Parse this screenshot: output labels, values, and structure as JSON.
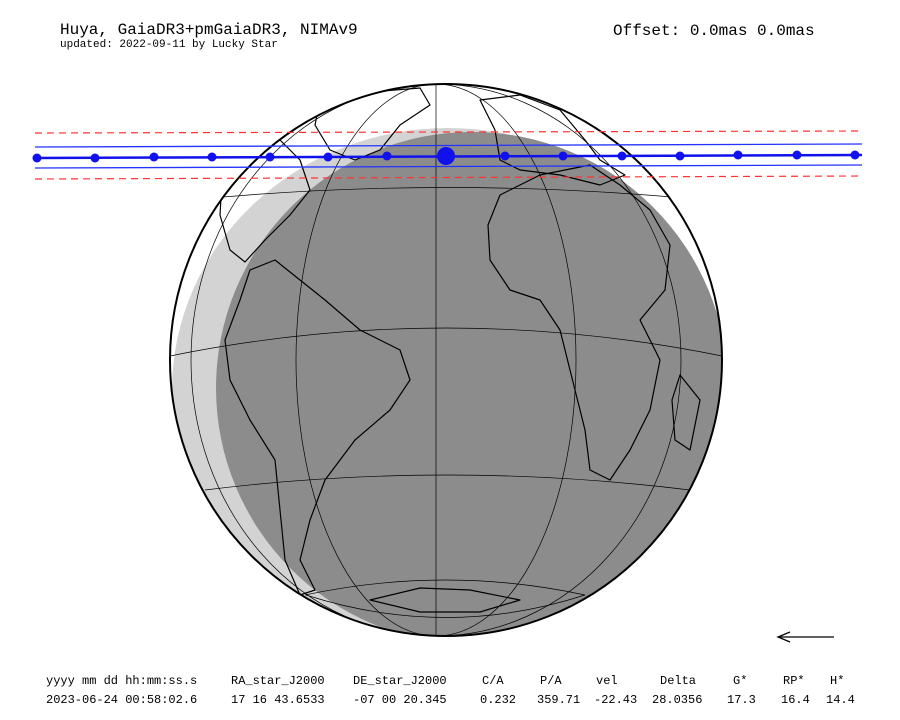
{
  "header": {
    "title": "Huya, GaiaDR3+pmGaiaDR3, NIMAv9",
    "subtitle": "updated: 2022-09-11 by Lucky Star",
    "offset": "Offset: 0.0mas 0.0mas"
  },
  "table": {
    "header": [
      "yyyy mm dd hh:mm:ss.s",
      "RA_star_J2000",
      "DE_star_J2000",
      "C/A",
      "P/A",
      "vel",
      "Delta",
      "G*",
      "RP*",
      "H*"
    ],
    "rows": [
      [
        "2023-06-24 00:58:02.6",
        "17 16 43.6533",
        "-07 00 20.345",
        "0.232",
        "359.71",
        "-22.43",
        "28.0356",
        "17.3",
        "16.4",
        "14.4"
      ]
    ]
  }
}
